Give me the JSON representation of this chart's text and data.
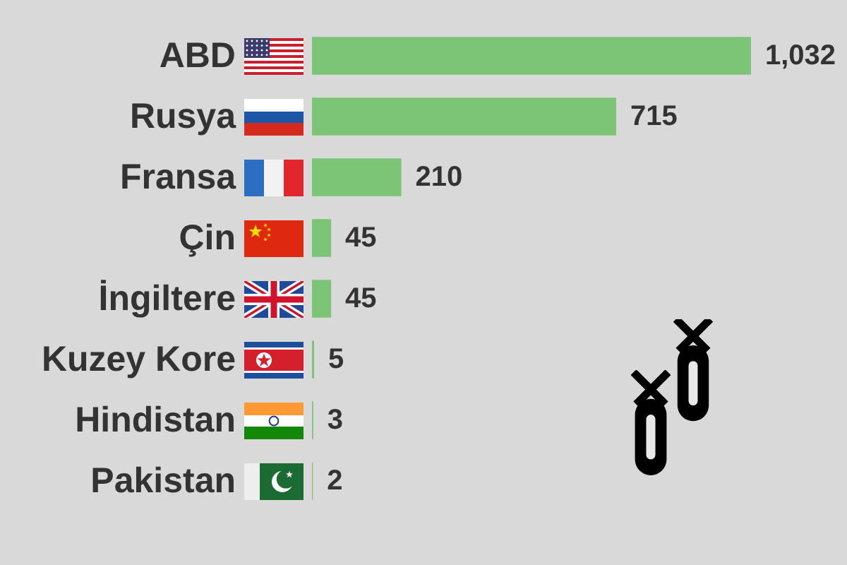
{
  "chart_data": {
    "type": "bar",
    "orientation": "horizontal",
    "categories": [
      "ABD",
      "Rusya",
      "Fransa",
      "Çin",
      "İngiltere",
      "Kuzey Kore",
      "Hindistan",
      "Pakistan"
    ],
    "values": [
      1032,
      715,
      210,
      45,
      45,
      5,
      3,
      2
    ],
    "color": "#7cc576",
    "value_labels": [
      "1,032",
      "715",
      "210",
      "45",
      "45",
      "5",
      "3",
      "2"
    ]
  }
}
